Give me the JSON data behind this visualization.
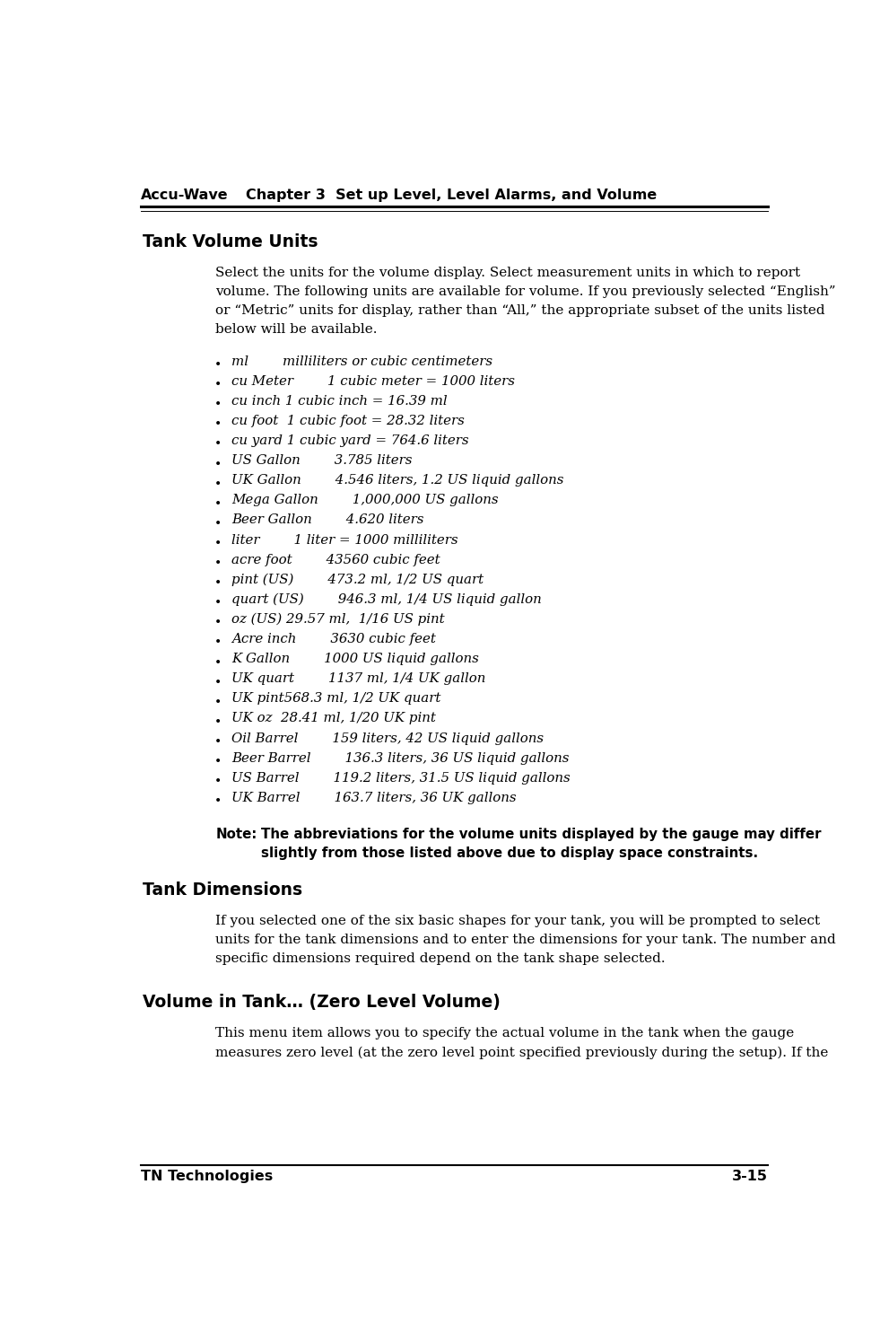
{
  "header_left": "Accu-Wave",
  "header_right": "Chapter 3  Set up Level, Level Alarms, and Volume",
  "footer_left": "TN Technologies",
  "footer_right": "3-15",
  "section1_title": "Tank Volume Units",
  "section1_body_lines": [
    "Select the units for the volume display. Select measurement units in which to report",
    "volume. The following units are available for volume. If you previously selected “English”",
    "or “Metric” units for display, rather than “All,” the appropriate subset of the units listed",
    "below will be available."
  ],
  "bullet_items": [
    [
      "ml",
      "milliliters or cubic centimeters"
    ],
    [
      "cu Meter",
      "1 cubic meter = 1000 liters"
    ],
    [
      "cu inch 1 cubic inch = 16.39 ml",
      ""
    ],
    [
      "cu foot  1 cubic foot = 28.32 liters",
      ""
    ],
    [
      "cu yard 1 cubic yard = 764.6 liters",
      ""
    ],
    [
      "US Gallon",
      "3.785 liters"
    ],
    [
      "UK Gallon",
      "4.546 liters, 1.2 US liquid gallons"
    ],
    [
      "Mega Gallon",
      "1,000,000 US gallons"
    ],
    [
      "Beer Gallon",
      "4.620 liters"
    ],
    [
      "liter",
      "1 liter = 1000 milliliters"
    ],
    [
      "acre foot",
      "43560 cubic feet"
    ],
    [
      "pint (US)",
      "473.2 ml, 1/2 US quart"
    ],
    [
      "quart (US)",
      "946.3 ml, 1/4 US liquid gallon"
    ],
    [
      "oz (US) 29.57 ml,  1/16 US pint",
      ""
    ],
    [
      "Acre inch",
      "3630 cubic feet"
    ],
    [
      "K Gallon",
      "1000 US liquid gallons"
    ],
    [
      "UK quart",
      "1137 ml, 1/4 UK gallon"
    ],
    [
      "UK pint568.3 ml, 1/2 UK quart",
      ""
    ],
    [
      "UK oz  28.41 ml, 1/20 UK pint",
      ""
    ],
    [
      "Oil Barrel",
      "159 liters, 42 US liquid gallons"
    ],
    [
      "Beer Barrel",
      "136.3 liters, 36 US liquid gallons"
    ],
    [
      "US Barrel",
      "119.2 liters, 31.5 US liquid gallons"
    ],
    [
      "UK Barrel",
      "163.7 liters, 36 UK gallons"
    ]
  ],
  "note_label": "Note:",
  "note_line1": "The abbreviations for the volume units displayed by the gauge may differ",
  "note_line2": "slightly from those listed above due to display space constraints.",
  "section2_title": "Tank Dimensions",
  "section2_body_lines": [
    "If you selected one of the six basic shapes for your tank, you will be prompted to select",
    "units for the tank dimensions and to enter the dimensions for your tank. The number and",
    "specific dimensions required depend on the tank shape selected."
  ],
  "section3_title": "Volume in Tank… (Zero Level Volume)",
  "section3_body_lines": [
    "This menu item allows you to specify the actual volume in the tank when the gauge",
    "measures zero level (at the zero level point specified previously during the setup). If the"
  ],
  "bg_color": "#ffffff",
  "text_color": "#000000",
  "header_font_size": 11.5,
  "body_font_size": 11.0,
  "section_title_font_size": 13.5,
  "bullet_font_size": 10.8,
  "note_font_size": 10.8
}
